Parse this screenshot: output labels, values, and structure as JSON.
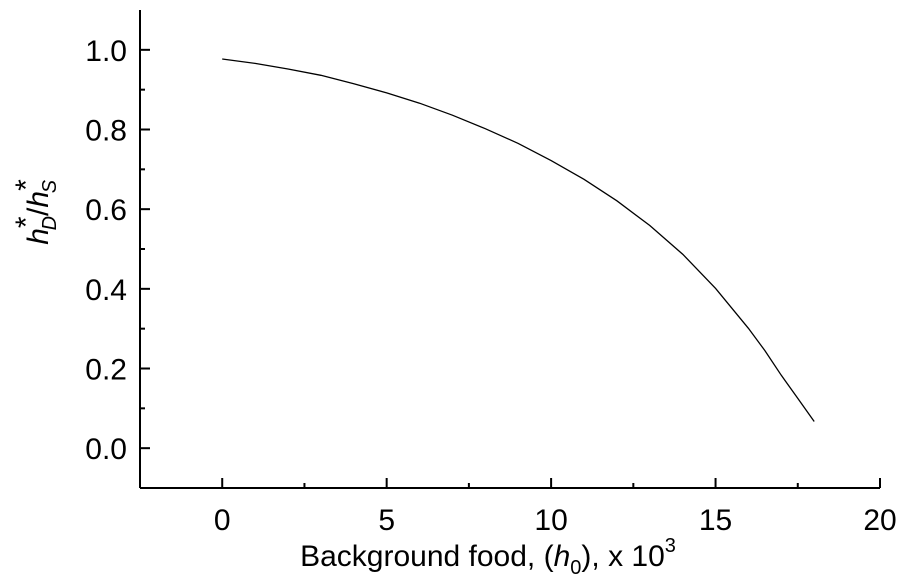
{
  "chart_data": {
    "type": "line",
    "xlabel": {
      "prefix": "Background food, (",
      "var": "h",
      "var_sub": "0",
      "suffix": "), x 10",
      "suffix_sup": "3"
    },
    "ylabel": {
      "var1": "h",
      "star1": "*",
      "sub1": "D",
      "slash": "/",
      "var2": "h",
      "star2": "*",
      "sub2": "S"
    },
    "xlim": [
      -2.5,
      20
    ],
    "ylim": [
      -0.1,
      1.1
    ],
    "x_ticks": [
      0,
      5,
      10,
      15,
      20
    ],
    "x_tick_labels": [
      "0",
      "5",
      "10",
      "15",
      "20"
    ],
    "x_minor_ticks": [
      2.5,
      7.5,
      12.5,
      17.5
    ],
    "y_ticks": [
      0.0,
      0.2,
      0.4,
      0.6,
      0.8,
      1.0
    ],
    "y_tick_labels": [
      "0.0",
      "0.2",
      "0.4",
      "0.6",
      "0.8",
      "1.0"
    ],
    "y_minor_ticks": [
      0.1,
      0.3,
      0.5,
      0.7,
      0.9
    ],
    "grid": false,
    "series": [
      {
        "color": "#000000",
        "x": [
          0,
          1,
          2,
          3,
          4,
          5,
          6,
          7,
          8,
          9,
          10,
          11,
          12,
          13,
          14,
          15,
          16,
          16.5,
          17,
          17.5,
          18
        ],
        "y": [
          0.977,
          0.966,
          0.952,
          0.936,
          0.915,
          0.892,
          0.866,
          0.836,
          0.802,
          0.765,
          0.722,
          0.675,
          0.621,
          0.559,
          0.487,
          0.401,
          0.301,
          0.245,
          0.183,
          0.125,
          0.067
        ]
      }
    ]
  }
}
